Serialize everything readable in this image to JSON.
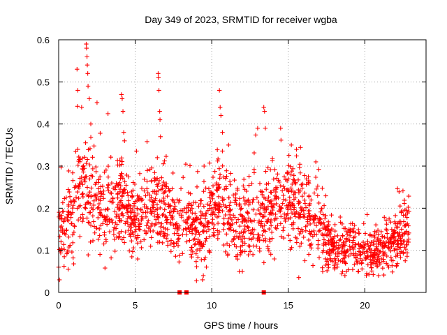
{
  "chart_data": {
    "type": "scatter",
    "title": "Day 349 of 2023, SRMTID for receiver wgba",
    "xlabel": "GPS time / hours",
    "ylabel": "SRMTID / TECUs",
    "xlim": [
      0,
      24
    ],
    "ylim": [
      0,
      0.6
    ],
    "xticks": [
      0,
      5,
      10,
      15,
      20
    ],
    "xtick_labels": [
      "0",
      "5",
      "10",
      "15",
      "20"
    ],
    "yticks": [
      0,
      0.1,
      0.2,
      0.3,
      0.4,
      0.5,
      0.6
    ],
    "ytick_labels": [
      "0",
      "0.1",
      "0.2",
      "0.3",
      "0.4",
      "0.5",
      "0.6"
    ],
    "grid": true,
    "marker": "plus",
    "color": "#ff0000",
    "data_gaps_at_zero": [
      7.9,
      8.35,
      13.4
    ],
    "envelope": [
      [
        0.0,
        0.14,
        0.1
      ],
      [
        0.5,
        0.15,
        0.1
      ],
      [
        1.0,
        0.19,
        0.12
      ],
      [
        1.5,
        0.26,
        0.15
      ],
      [
        2.0,
        0.24,
        0.14
      ],
      [
        2.5,
        0.22,
        0.14
      ],
      [
        3.0,
        0.18,
        0.11
      ],
      [
        3.5,
        0.2,
        0.12
      ],
      [
        4.0,
        0.22,
        0.12
      ],
      [
        4.5,
        0.19,
        0.12
      ],
      [
        5.0,
        0.17,
        0.11
      ],
      [
        5.5,
        0.18,
        0.11
      ],
      [
        6.0,
        0.19,
        0.11
      ],
      [
        6.5,
        0.21,
        0.12
      ],
      [
        7.0,
        0.19,
        0.12
      ],
      [
        7.5,
        0.17,
        0.11
      ],
      [
        8.0,
        0.16,
        0.11
      ],
      [
        8.5,
        0.18,
        0.11
      ],
      [
        9.0,
        0.14,
        0.1
      ],
      [
        9.5,
        0.15,
        0.1
      ],
      [
        10.0,
        0.19,
        0.12
      ],
      [
        10.5,
        0.21,
        0.13
      ],
      [
        11.0,
        0.18,
        0.12
      ],
      [
        11.5,
        0.17,
        0.11
      ],
      [
        12.0,
        0.16,
        0.11
      ],
      [
        12.5,
        0.17,
        0.11
      ],
      [
        13.0,
        0.18,
        0.12
      ],
      [
        13.5,
        0.17,
        0.11
      ],
      [
        14.0,
        0.19,
        0.12
      ],
      [
        14.5,
        0.2,
        0.12
      ],
      [
        15.0,
        0.21,
        0.12
      ],
      [
        15.5,
        0.2,
        0.12
      ],
      [
        16.0,
        0.19,
        0.12
      ],
      [
        16.5,
        0.17,
        0.11
      ],
      [
        17.0,
        0.14,
        0.1
      ],
      [
        17.5,
        0.13,
        0.09
      ],
      [
        18.0,
        0.11,
        0.08
      ],
      [
        18.5,
        0.1,
        0.07
      ],
      [
        19.0,
        0.11,
        0.07
      ],
      [
        19.5,
        0.1,
        0.06
      ],
      [
        20.0,
        0.09,
        0.06
      ],
      [
        20.5,
        0.09,
        0.06
      ],
      [
        21.0,
        0.1,
        0.06
      ],
      [
        21.5,
        0.11,
        0.07
      ],
      [
        22.0,
        0.12,
        0.07
      ],
      [
        22.5,
        0.14,
        0.08
      ],
      [
        22.9,
        0.15,
        0.08
      ]
    ],
    "spikes": [
      [
        1.2,
        0.53
      ],
      [
        1.25,
        0.48
      ],
      [
        1.5,
        0.44
      ],
      [
        1.8,
        0.59
      ],
      [
        1.82,
        0.58
      ],
      [
        1.85,
        0.56
      ],
      [
        1.87,
        0.54
      ],
      [
        1.9,
        0.52
      ],
      [
        1.92,
        0.49
      ],
      [
        2.0,
        0.46
      ],
      [
        2.1,
        0.4
      ],
      [
        4.1,
        0.47
      ],
      [
        4.15,
        0.46
      ],
      [
        4.2,
        0.43
      ],
      [
        4.25,
        0.38
      ],
      [
        4.3,
        0.36
      ],
      [
        6.5,
        0.52
      ],
      [
        6.52,
        0.51
      ],
      [
        6.55,
        0.48
      ],
      [
        6.6,
        0.43
      ],
      [
        6.62,
        0.41
      ],
      [
        6.65,
        0.37
      ],
      [
        10.5,
        0.48
      ],
      [
        10.55,
        0.44
      ],
      [
        10.6,
        0.42
      ],
      [
        10.7,
        0.38
      ],
      [
        13.0,
        0.39
      ],
      [
        13.4,
        0.44
      ],
      [
        13.45,
        0.43
      ],
      [
        13.5,
        0.39
      ],
      [
        14.5,
        0.39
      ],
      [
        15.2,
        0.35
      ],
      [
        16.8,
        0.31
      ],
      [
        9.5,
        0.3
      ],
      [
        11.1,
        0.35
      ]
    ],
    "dips": [
      [
        0.0,
        0.06
      ],
      [
        0.05,
        0.03
      ],
      [
        9.4,
        0.03
      ],
      [
        9.45,
        0.04
      ],
      [
        18.7,
        0.04
      ],
      [
        18.8,
        0.05
      ],
      [
        20.1,
        0.04
      ],
      [
        20.9,
        0.04
      ],
      [
        11.8,
        0.05
      ],
      [
        12.0,
        0.05
      ]
    ],
    "samples_per_hour": 80
  }
}
